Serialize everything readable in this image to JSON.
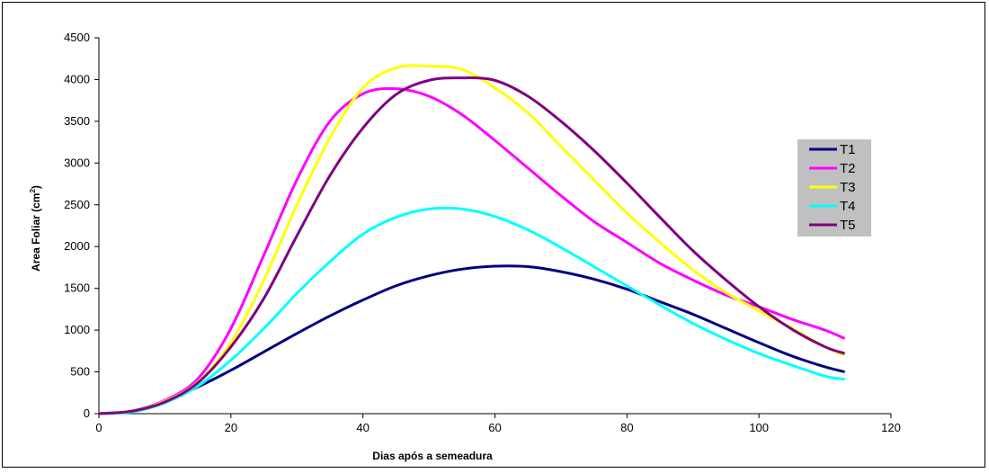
{
  "chart_data": {
    "type": "line",
    "xlabel": "Dias após a semeadura",
    "ylabel": "Area Foliar (cm",
    "ylabel_sup": "2",
    "ylabel_close": ")",
    "xlim": [
      0,
      120
    ],
    "ylim": [
      0,
      4500
    ],
    "xticks": [
      0,
      20,
      40,
      60,
      80,
      100,
      120
    ],
    "yticks": [
      0,
      500,
      1000,
      1500,
      2000,
      2500,
      3000,
      3500,
      4000,
      4500
    ],
    "grid": false,
    "legend_position": "right",
    "x": [
      0,
      5,
      10,
      15,
      20,
      25,
      30,
      35,
      40,
      45,
      50,
      55,
      60,
      65,
      70,
      75,
      80,
      85,
      90,
      95,
      100,
      105,
      110,
      113
    ],
    "series": [
      {
        "name": "T1",
        "color": "#000080",
        "values": [
          0,
          30,
          150,
          320,
          520,
          740,
          960,
          1170,
          1360,
          1530,
          1650,
          1730,
          1765,
          1760,
          1700,
          1610,
          1490,
          1340,
          1190,
          1020,
          850,
          690,
          560,
          500
        ]
      },
      {
        "name": "T2",
        "color": "#FF00FF",
        "values": [
          0,
          30,
          160,
          420,
          1020,
          1900,
          2800,
          3500,
          3830,
          3890,
          3800,
          3580,
          3270,
          2940,
          2610,
          2300,
          2050,
          1800,
          1600,
          1420,
          1280,
          1130,
          1000,
          900
        ]
      },
      {
        "name": "T3",
        "color": "#FFFF00",
        "values": [
          0,
          30,
          150,
          380,
          850,
          1600,
          2500,
          3300,
          3900,
          4140,
          4160,
          4120,
          3900,
          3600,
          3200,
          2800,
          2400,
          2050,
          1720,
          1450,
          1230,
          1020,
          800,
          700
        ]
      },
      {
        "name": "T4",
        "color": "#00FFFF",
        "values": [
          0,
          20,
          130,
          330,
          640,
          1020,
          1440,
          1820,
          2150,
          2350,
          2450,
          2450,
          2360,
          2200,
          1990,
          1760,
          1530,
          1300,
          1080,
          890,
          720,
          580,
          450,
          410
        ]
      },
      {
        "name": "T5",
        "color": "#800080",
        "values": [
          0,
          30,
          140,
          370,
          800,
          1380,
          2130,
          2850,
          3420,
          3820,
          3990,
          4020,
          3990,
          3800,
          3500,
          3150,
          2760,
          2350,
          1950,
          1600,
          1280,
          1010,
          800,
          720
        ]
      }
    ]
  }
}
